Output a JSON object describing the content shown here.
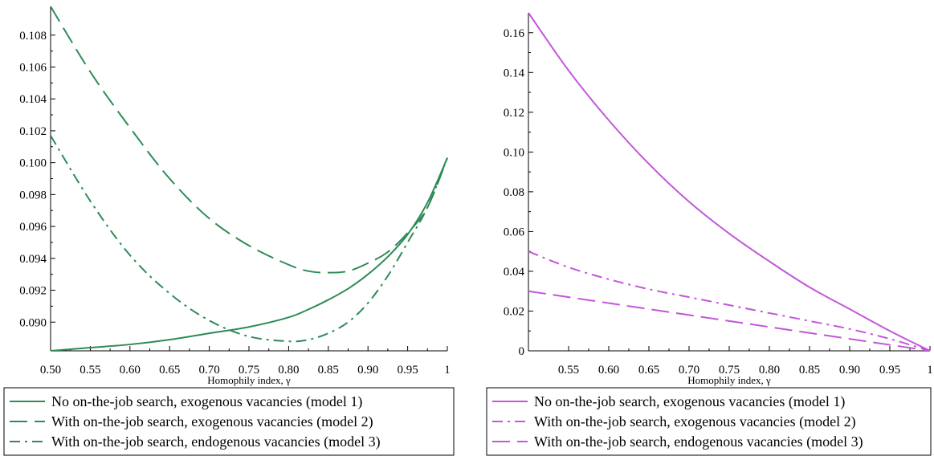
{
  "chart_data": [
    {
      "type": "line",
      "xlabel": "Homophily index, γ",
      "ylabel": "",
      "xlim": [
        0.5,
        1.0
      ],
      "ylim": [
        0.0882,
        0.1098
      ],
      "legend_position": "bottom",
      "x_ticks": [
        {
          "value": 0.5,
          "label": "0.50"
        },
        {
          "value": 0.55,
          "label": "0.55"
        },
        {
          "value": 0.6,
          "label": "0.60"
        },
        {
          "value": 0.65,
          "label": "0.65"
        },
        {
          "value": 0.7,
          "label": "0.70"
        },
        {
          "value": 0.75,
          "label": "0.75"
        },
        {
          "value": 0.8,
          "label": "0.80"
        },
        {
          "value": 0.85,
          "label": "0.85"
        },
        {
          "value": 0.9,
          "label": "0.90"
        },
        {
          "value": 0.95,
          "label": "0.95"
        },
        {
          "value": 1.0,
          "label": "1"
        }
      ],
      "y_ticks": [
        {
          "value": 0.09,
          "label": "0.090"
        },
        {
          "value": 0.092,
          "label": "0.092"
        },
        {
          "value": 0.094,
          "label": "0.094"
        },
        {
          "value": 0.096,
          "label": "0.096"
        },
        {
          "value": 0.098,
          "label": "0.098"
        },
        {
          "value": 0.1,
          "label": "0.100"
        },
        {
          "value": 0.102,
          "label": "0.102"
        },
        {
          "value": 0.104,
          "label": "0.104"
        },
        {
          "value": 0.106,
          "label": "0.106"
        },
        {
          "value": 0.108,
          "label": "0.108"
        }
      ],
      "color": "#2e8b57",
      "series": [
        {
          "name": "No on-the-job search, exogenous vacancies (model 1)",
          "dash": "solid",
          "x": [
            0.5,
            0.55,
            0.6,
            0.65,
            0.7,
            0.75,
            0.8,
            0.825,
            0.85,
            0.875,
            0.9,
            0.925,
            0.95,
            0.975,
            1.0
          ],
          "y": [
            0.0882,
            0.0884,
            0.0886,
            0.0889,
            0.0893,
            0.0897,
            0.0903,
            0.0908,
            0.0914,
            0.0921,
            0.093,
            0.0941,
            0.0955,
            0.0975,
            0.1003
          ]
        },
        {
          "name": "With on-the-job search, exogenous vacancies (model 2)",
          "dash": "long",
          "x": [
            0.5,
            0.55,
            0.6,
            0.65,
            0.7,
            0.75,
            0.8,
            0.825,
            0.85,
            0.875,
            0.9,
            0.925,
            0.95,
            0.975,
            1.0
          ],
          "y": [
            0.1098,
            0.1057,
            0.1022,
            0.099,
            0.0965,
            0.0948,
            0.0936,
            0.0932,
            0.0931,
            0.0932,
            0.0937,
            0.0944,
            0.0956,
            0.0972,
            0.1003
          ]
        },
        {
          "name": "With on-the-job search, endogenous vacancies (model 3)",
          "dash": "dashdot",
          "x": [
            0.5,
            0.55,
            0.6,
            0.65,
            0.7,
            0.75,
            0.8,
            0.825,
            0.85,
            0.875,
            0.9,
            0.925,
            0.95,
            0.975,
            1.0
          ],
          "y": [
            0.1017,
            0.0976,
            0.0942,
            0.0918,
            0.0901,
            0.0891,
            0.0888,
            0.0889,
            0.0893,
            0.09,
            0.0912,
            0.0929,
            0.095,
            0.0972,
            0.1003
          ]
        }
      ]
    },
    {
      "type": "line",
      "xlabel": "Homophily index, γ",
      "ylabel": "",
      "xlim": [
        0.5,
        1.0
      ],
      "ylim": [
        0.0,
        0.17
      ],
      "legend_position": "bottom",
      "x_ticks": [
        {
          "value": 0.55,
          "label": "0.55"
        },
        {
          "value": 0.6,
          "label": "0.60"
        },
        {
          "value": 0.65,
          "label": "0.65"
        },
        {
          "value": 0.7,
          "label": "0.70"
        },
        {
          "value": 0.75,
          "label": "0.75"
        },
        {
          "value": 0.8,
          "label": "0.80"
        },
        {
          "value": 0.85,
          "label": "0.85"
        },
        {
          "value": 0.9,
          "label": "0.90"
        },
        {
          "value": 0.95,
          "label": "0.95"
        },
        {
          "value": 1.0,
          "label": "1"
        }
      ],
      "y_ticks": [
        {
          "value": 0.0,
          "label": "0"
        },
        {
          "value": 0.02,
          "label": "0.02"
        },
        {
          "value": 0.04,
          "label": "0.04"
        },
        {
          "value": 0.06,
          "label": "0.06"
        },
        {
          "value": 0.08,
          "label": "0.08"
        },
        {
          "value": 0.1,
          "label": "0.10"
        },
        {
          "value": 0.12,
          "label": "0.12"
        },
        {
          "value": 0.14,
          "label": "0.14"
        },
        {
          "value": 0.16,
          "label": "0.16"
        }
      ],
      "color": "#c257d8",
      "series": [
        {
          "name": "No on-the-job search, exogenous vacancies (model 1)",
          "dash": "solid",
          "x": [
            0.5,
            0.55,
            0.6,
            0.65,
            0.7,
            0.75,
            0.8,
            0.85,
            0.9,
            0.95,
            1.0
          ],
          "y": [
            0.17,
            0.141,
            0.116,
            0.094,
            0.075,
            0.059,
            0.045,
            0.032,
            0.021,
            0.01,
            0.0
          ]
        },
        {
          "name": "With on-the-job search, exogenous vacancies (model 2)",
          "dash": "dashdot",
          "x": [
            0.5,
            0.55,
            0.6,
            0.65,
            0.7,
            0.75,
            0.8,
            0.85,
            0.9,
            0.95,
            1.0
          ],
          "y": [
            0.05,
            0.042,
            0.036,
            0.031,
            0.027,
            0.023,
            0.019,
            0.015,
            0.011,
            0.006,
            0.0
          ]
        },
        {
          "name": "With on-the-job search, endogenous vacancies (model 3)",
          "dash": "long",
          "x": [
            0.5,
            0.55,
            0.6,
            0.65,
            0.7,
            0.75,
            0.8,
            0.85,
            0.9,
            0.95,
            1.0
          ],
          "y": [
            0.03,
            0.027,
            0.024,
            0.021,
            0.018,
            0.015,
            0.012,
            0.009,
            0.006,
            0.003,
            0.0
          ]
        }
      ]
    }
  ]
}
